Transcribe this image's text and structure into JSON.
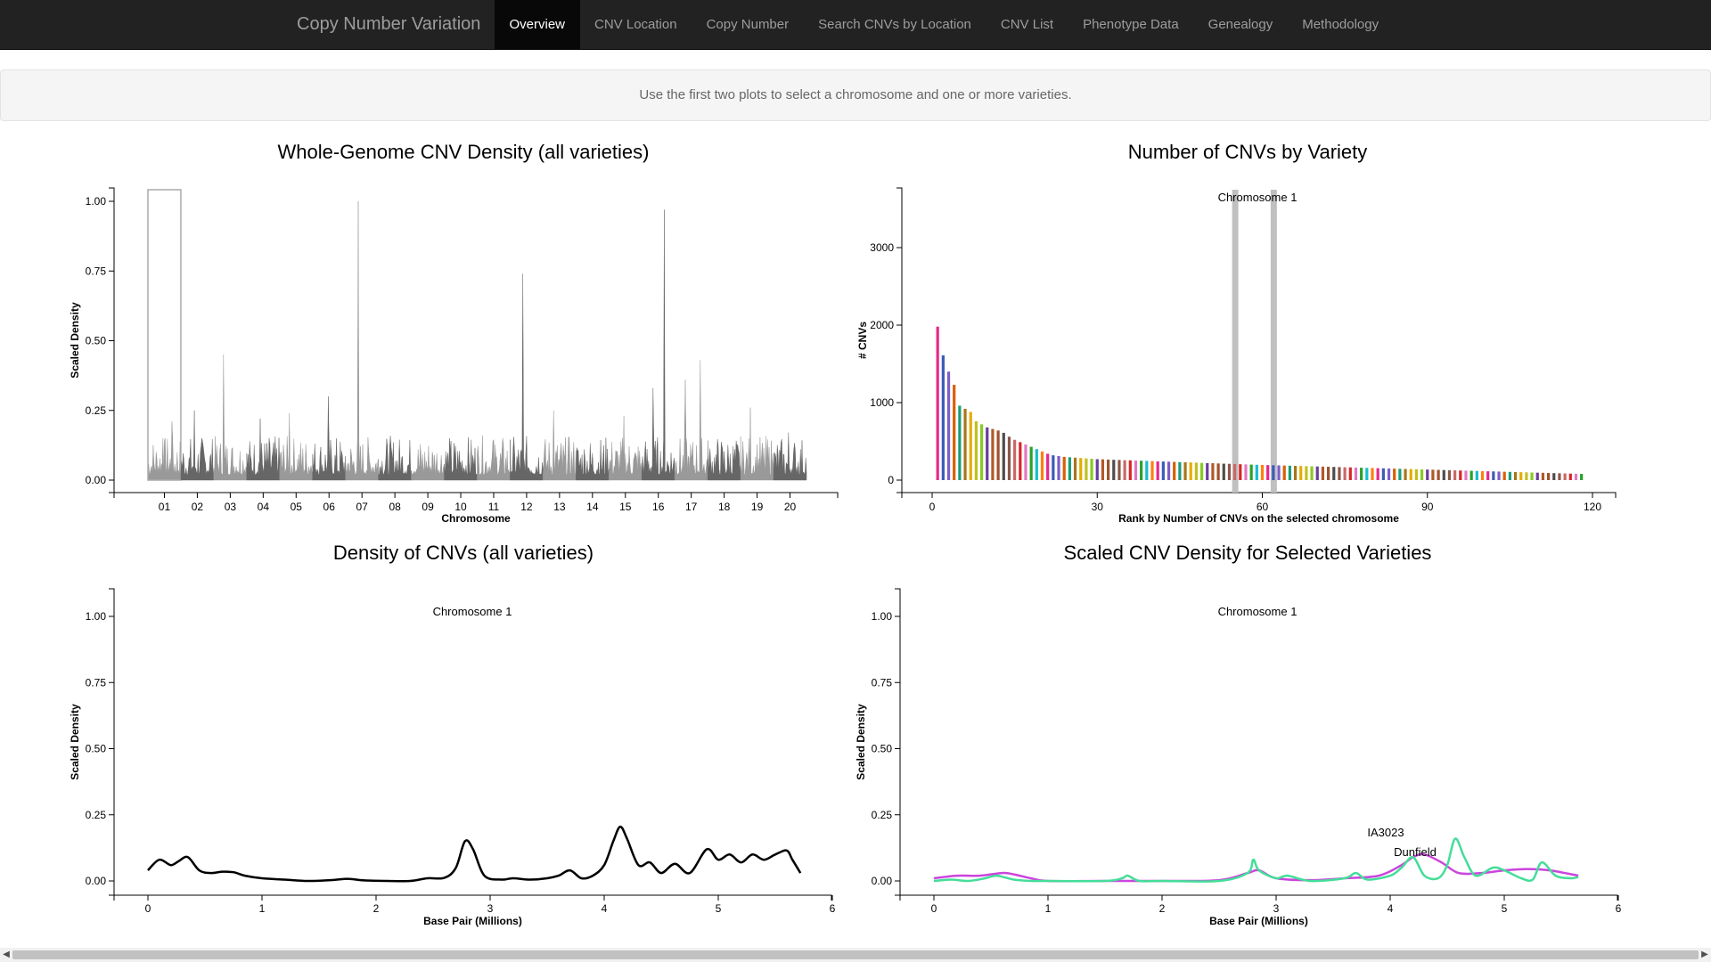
{
  "navbar": {
    "brand": "Copy Number Variation",
    "tabs": [
      "Overview",
      "CNV Location",
      "Copy Number",
      "Search CNVs by Location",
      "CNV List",
      "Phenotype Data",
      "Genealogy",
      "Methodology"
    ],
    "active_tab": "Overview"
  },
  "instructions": "Use the first two plots to select a chromosome and one or more varieties.",
  "chart_data": [
    {
      "id": "genome",
      "type": "area",
      "title": "Whole-Genome CNV Density (all varieties)",
      "xlabel": "Chromosome",
      "ylabel": "Scaled Density",
      "ylim": [
        0,
        1.05
      ],
      "yticks": [
        "0.00",
        "0.25",
        "0.50",
        "0.75",
        "1.00"
      ],
      "chromosomes": [
        "01",
        "02",
        "03",
        "04",
        "05",
        "06",
        "07",
        "08",
        "09",
        "10",
        "11",
        "12",
        "13",
        "14",
        "15",
        "16",
        "17",
        "18",
        "19",
        "20"
      ],
      "colors": [
        "#999999",
        "#666666"
      ],
      "selected_chromosome": "01",
      "peaks": [
        {
          "chromosome": "01",
          "value": 0.15
        },
        {
          "chromosome": "01",
          "value": 0.21
        },
        {
          "chromosome": "02",
          "value": 0.25
        },
        {
          "chromosome": "03",
          "value": 0.45
        },
        {
          "chromosome": "04",
          "value": 0.22
        },
        {
          "chromosome": "05",
          "value": 0.24
        },
        {
          "chromosome": "06",
          "value": 0.3
        },
        {
          "chromosome": "07",
          "value": 1.0
        },
        {
          "chromosome": "11",
          "value": 0.14
        },
        {
          "chromosome": "12",
          "value": 0.74
        },
        {
          "chromosome": "13",
          "value": 0.25
        },
        {
          "chromosome": "15",
          "value": 0.23
        },
        {
          "chromosome": "16",
          "value": 0.33
        },
        {
          "chromosome": "16",
          "value": 0.97
        },
        {
          "chromosome": "17",
          "value": 0.36
        },
        {
          "chromosome": "17",
          "value": 0.43
        },
        {
          "chromosome": "19",
          "value": 0.26
        },
        {
          "chromosome": "20",
          "value": 0.17
        }
      ]
    },
    {
      "id": "rank",
      "type": "bar",
      "title": "Number of CNVs by Variety",
      "xlabel": "Rank by Number of CNVs on the selected chromosome",
      "ylabel": "# CNVs",
      "annotation": "Chromosome 1",
      "xlim": [
        -5,
        125
      ],
      "xticks": [
        0,
        30,
        60,
        90,
        120
      ],
      "ylim": [
        0,
        3800
      ],
      "yticks": [
        0,
        1000,
        2000,
        3000
      ],
      "highlighted_ranks": [
        55,
        62
      ],
      "values": [
        1980,
        1610,
        1400,
        1230,
        960,
        920,
        880,
        760,
        720,
        680,
        660,
        640,
        610,
        560,
        520,
        490,
        460,
        430,
        400,
        370,
        340,
        320,
        310,
        300,
        295,
        290,
        285,
        280,
        275,
        270,
        268,
        265,
        262,
        260,
        257,
        255,
        252,
        250,
        248,
        245,
        242,
        240,
        238,
        235,
        232,
        230,
        228,
        225,
        222,
        220,
        218,
        215,
        212,
        210,
        208,
        205,
        203,
        200,
        198,
        196,
        194,
        192,
        190,
        188,
        186,
        184,
        182,
        180,
        178,
        176,
        174,
        172,
        170,
        168,
        166,
        164,
        162,
        160,
        158,
        156,
        154,
        152,
        150,
        148,
        146,
        144,
        142,
        140,
        138,
        136,
        134,
        132,
        130,
        128,
        126,
        124,
        122,
        120,
        118,
        116,
        114,
        112,
        110,
        108,
        106,
        104,
        102,
        100,
        98,
        96,
        94,
        92,
        90,
        88,
        86,
        84,
        82,
        80
      ],
      "colors": [
        "#e7298a",
        "#3b5bb5",
        "#7e5cc8",
        "#d95f02",
        "#1b9e77",
        "#a6761d",
        "#e6ab02",
        "#c0c020",
        "#8ac926",
        "#6a3d9a",
        "#b15928",
        "#a0522d",
        "#4d4d4d",
        "#8c564b",
        "#cc6666",
        "#d62728",
        "#e377c2",
        "#2ca02c",
        "#17becf",
        "#ff7f0e"
      ]
    },
    {
      "id": "density",
      "type": "line",
      "title": "Density of CNVs (all varieties)",
      "xlabel": "Base Pair (Millions)",
      "ylabel": "Scaled Density",
      "annotation": "Chromosome 1",
      "xlim": [
        -0.3,
        6.1
      ],
      "xticks": [
        0,
        1,
        2,
        3,
        4,
        5,
        6
      ],
      "ylim": [
        -0.07,
        1.1
      ],
      "yticks": [
        "0.00",
        "0.25",
        "0.50",
        "0.75",
        "1.00"
      ],
      "series": [
        {
          "color": "#000000",
          "x": [
            0,
            0.1,
            0.2,
            0.27,
            0.35,
            0.45,
            0.55,
            0.65,
            0.75,
            0.85,
            1.0,
            1.2,
            1.4,
            1.6,
            1.75,
            1.9,
            2.1,
            2.3,
            2.45,
            2.6,
            2.7,
            2.78,
            2.85,
            2.95,
            3.1,
            3.2,
            3.35,
            3.5,
            3.6,
            3.7,
            3.8,
            3.9,
            4.0,
            4.08,
            4.14,
            4.2,
            4.3,
            4.4,
            4.5,
            4.62,
            4.75,
            4.9,
            5.0,
            5.1,
            5.2,
            5.3,
            5.4,
            5.5,
            5.6,
            5.65,
            5.72
          ],
          "y": [
            0.04,
            0.08,
            0.06,
            0.075,
            0.09,
            0.04,
            0.03,
            0.035,
            0.033,
            0.02,
            0.01,
            0.005,
            0.0,
            0.003,
            0.008,
            0.002,
            0.0,
            0.0,
            0.01,
            0.012,
            0.05,
            0.15,
            0.12,
            0.02,
            0.005,
            0.01,
            0.005,
            0.01,
            0.02,
            0.04,
            0.01,
            0.02,
            0.06,
            0.15,
            0.205,
            0.16,
            0.06,
            0.07,
            0.03,
            0.065,
            0.03,
            0.12,
            0.08,
            0.1,
            0.07,
            0.1,
            0.08,
            0.1,
            0.115,
            0.08,
            0.03
          ]
        }
      ]
    },
    {
      "id": "varieties",
      "type": "line",
      "title": "Scaled CNV Density for Selected Varieties",
      "xlabel": "Base Pair (Millions)",
      "ylabel": "Scaled Density",
      "annotation": "Chromosome 1",
      "xlim": [
        -0.3,
        6.1
      ],
      "xticks": [
        0,
        1,
        2,
        3,
        4,
        5,
        6
      ],
      "ylim": [
        -0.07,
        1.1
      ],
      "yticks": [
        "0.00",
        "0.25",
        "0.50",
        "0.75",
        "1.00"
      ],
      "series": [
        {
          "name": "IA3023",
          "color": "#cc44dd",
          "x": [
            0,
            0.2,
            0.4,
            0.6,
            0.7,
            0.85,
            1.0,
            1.5,
            2.0,
            2.5,
            2.75,
            2.85,
            3.0,
            3.3,
            3.6,
            3.9,
            4.1,
            4.2,
            4.3,
            4.45,
            4.6,
            4.8,
            5.0,
            5.2,
            5.4,
            5.65
          ],
          "y": [
            0.01,
            0.02,
            0.02,
            0.03,
            0.025,
            0.01,
            0.0,
            0.0,
            0.0,
            0.003,
            0.03,
            0.04,
            0.01,
            0.003,
            0.01,
            0.02,
            0.06,
            0.09,
            0.1,
            0.07,
            0.03,
            0.03,
            0.04,
            0.045,
            0.04,
            0.02
          ]
        },
        {
          "name": "Dunfield",
          "color": "#44dd99",
          "x": [
            0,
            0.15,
            0.3,
            0.45,
            0.55,
            0.7,
            0.85,
            1.0,
            1.5,
            1.65,
            1.7,
            1.8,
            2.0,
            2.5,
            2.75,
            2.8,
            2.85,
            3.0,
            3.1,
            3.3,
            3.6,
            3.7,
            3.8,
            4.0,
            4.1,
            4.2,
            4.3,
            4.42,
            4.5,
            4.57,
            4.65,
            4.75,
            4.9,
            5.0,
            5.15,
            5.25,
            5.33,
            5.45,
            5.58,
            5.65
          ],
          "y": [
            0.0,
            0.005,
            0.0,
            0.01,
            0.02,
            0.005,
            0.0,
            0.0,
            0.0,
            0.01,
            0.02,
            0.0,
            0.0,
            0.0,
            0.03,
            0.08,
            0.04,
            0.01,
            0.02,
            0.0,
            0.01,
            0.03,
            0.005,
            0.02,
            0.05,
            0.09,
            0.02,
            0.01,
            0.06,
            0.16,
            0.09,
            0.02,
            0.05,
            0.04,
            0.01,
            0.005,
            0.07,
            0.02,
            0.01,
            0.015
          ]
        }
      ]
    }
  ]
}
